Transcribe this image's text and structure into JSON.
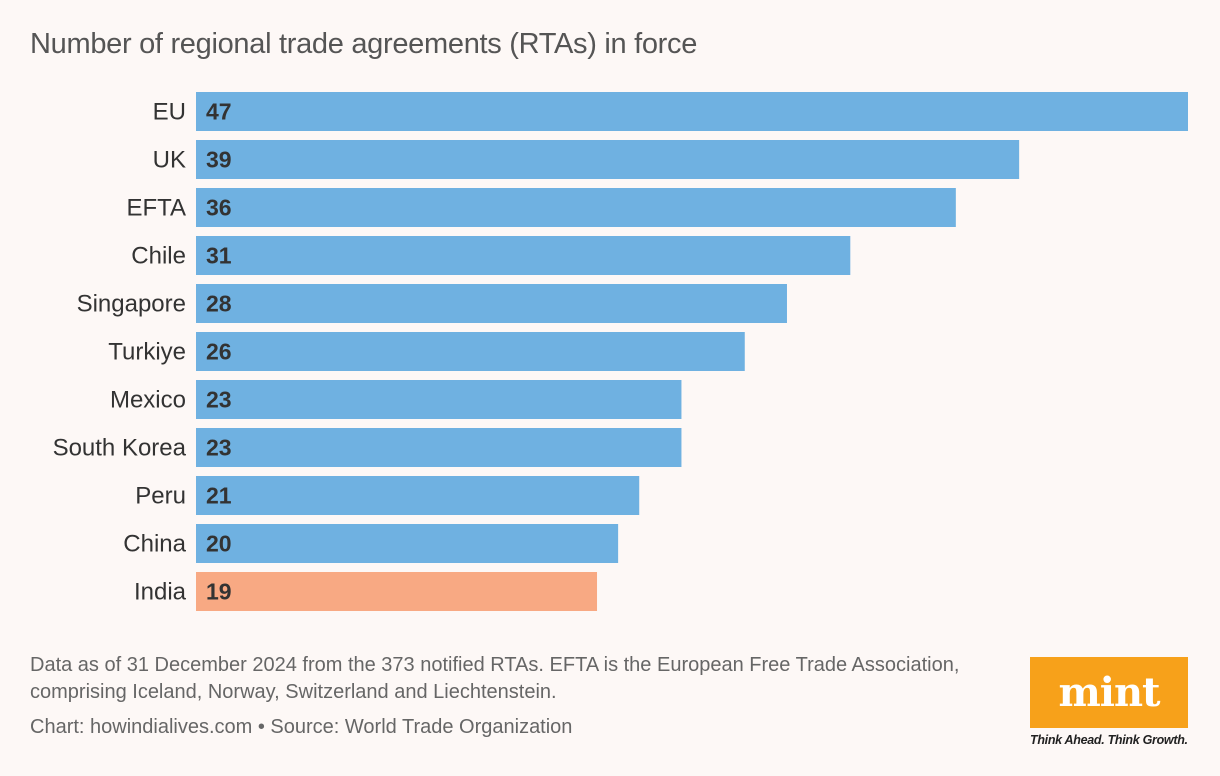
{
  "chart_data": {
    "type": "bar",
    "orientation": "horizontal",
    "title": "Number of regional trade agreements (RTAs) in force",
    "categories": [
      "EU",
      "UK",
      "EFTA",
      "Chile",
      "Singapore",
      "Turkiye",
      "Mexico",
      "South Korea",
      "Peru",
      "China",
      "India"
    ],
    "values": [
      47,
      39,
      36,
      31,
      28,
      26,
      23,
      23,
      21,
      20,
      19
    ],
    "highlight": "India",
    "colors": {
      "default": "#6fb1e1",
      "highlight": "#f8a983"
    },
    "xlim": [
      0,
      47
    ],
    "xlabel": "",
    "ylabel": ""
  },
  "note": "Data as of 31 December 2024 from the 373 notified RTAs. EFTA is the European Free Trade Association, comprising Iceland, Norway, Switzerland and Liechtenstein.",
  "credit": "Chart: howindialives.com • Source: World Trade Organization",
  "logo": {
    "text": "mint",
    "tagline": "Think Ahead. Think Growth.",
    "color": "#f7a11a"
  }
}
